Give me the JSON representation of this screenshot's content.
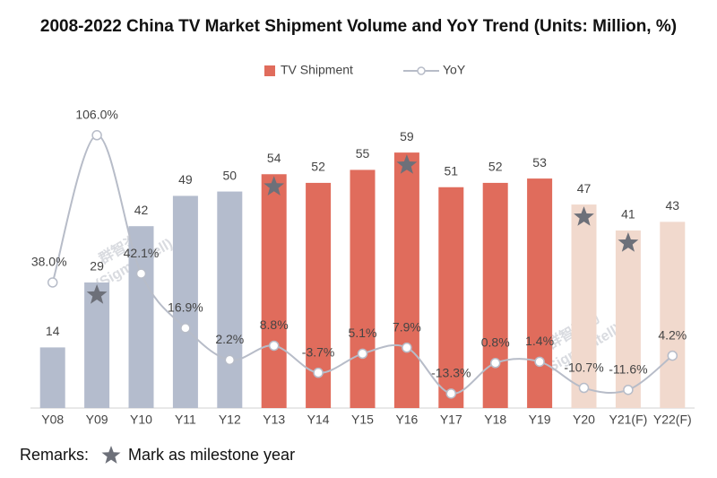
{
  "chart_data": {
    "type": "bar_line",
    "title": "2008-2022 China TV Market Shipment Volume and YoY Trend (Units: Million, %)",
    "categories": [
      "Y08",
      "Y09",
      "Y10",
      "Y11",
      "Y12",
      "Y13",
      "Y14",
      "Y15",
      "Y16",
      "Y17",
      "Y18",
      "Y19",
      "Y20",
      "Y21(F)",
      "Y22(F)"
    ],
    "series": [
      {
        "name": "TV Shipment",
        "color": "#e06c5c",
        "type": "bar",
        "colors": [
          "#b4bccd",
          "#b4bccd",
          "#b4bccd",
          "#b4bccd",
          "#b4bccd",
          "#e06c5c",
          "#e06c5c",
          "#e06c5c",
          "#e06c5c",
          "#e06c5c",
          "#e06c5c",
          "#e06c5c",
          "#f1d9cd",
          "#f1d9cd",
          "#f1d9cd"
        ],
        "values": [
          14,
          29,
          42,
          49,
          50,
          54,
          52,
          55,
          59,
          51,
          52,
          53,
          47,
          41,
          43
        ]
      },
      {
        "name": "YoY",
        "color": "#b7bcc8",
        "type": "line",
        "axis": "y2",
        "values": [
          38.0,
          106.0,
          42.1,
          16.9,
          2.2,
          8.8,
          -3.7,
          5.1,
          7.9,
          -13.3,
          0.8,
          1.4,
          -10.7,
          -11.6,
          4.2
        ],
        "value_labels": [
          "38.0%",
          "106.0%",
          "42.1%",
          "16.9%",
          "2.2%",
          "8.8%",
          "-3.7%",
          "5.1%",
          "7.9%",
          "-13.3%",
          "0.8%",
          "1.4%",
          "-10.7%",
          "-11.6%",
          "4.2%"
        ]
      }
    ],
    "milestones": [
      false,
      true,
      false,
      false,
      false,
      true,
      false,
      false,
      true,
      false,
      false,
      false,
      true,
      true,
      false
    ],
    "milestone_color": "#6d7079",
    "ylim": [
      0,
      70
    ],
    "y2lim": [
      -20,
      120
    ],
    "legend": "top",
    "remarks": {
      "label": "Remarks:",
      "text": "Mark as milestone year"
    },
    "watermark": [
      "群智咨询",
      "(Sigmaintell)"
    ]
  }
}
